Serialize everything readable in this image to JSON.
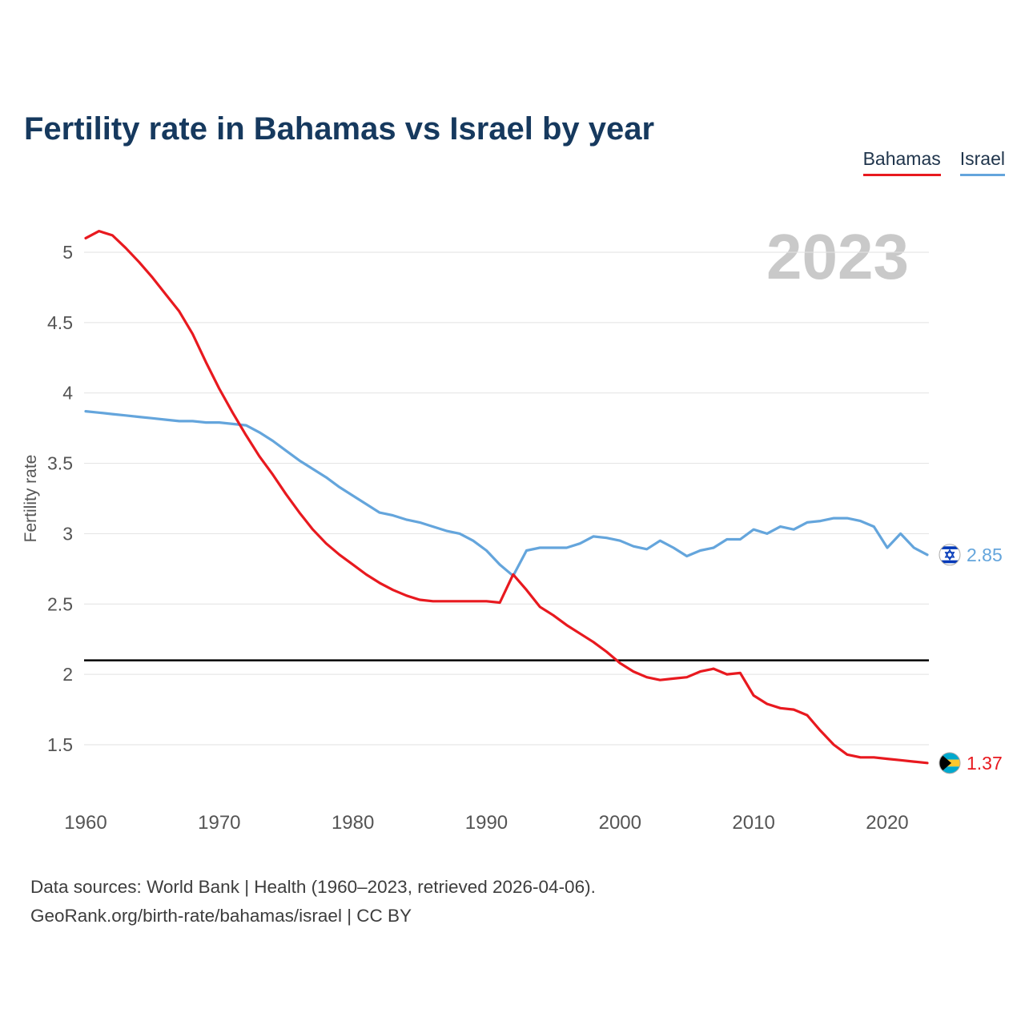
{
  "header": {
    "title": "Fertility rate in Bahamas vs Israel by year"
  },
  "legend": [
    {
      "label": "Bahamas",
      "color": "#e8191f"
    },
    {
      "label": "Israel",
      "color": "#64a5dc"
    }
  ],
  "watermark": "2023",
  "chart_data": {
    "type": "line",
    "title": "Fertility rate in Bahamas vs Israel by year",
    "xlabel": "",
    "ylabel": "Fertility rate",
    "ylim": [
      1.5,
      5
    ],
    "yticks": [
      5,
      4.5,
      4,
      3.5,
      3,
      2.5,
      2,
      1.5
    ],
    "xticks": [
      1960,
      1970,
      1980,
      1990,
      2000,
      2010,
      2020
    ],
    "grid": true,
    "legend_position": "top-right",
    "reference_line": {
      "value": 2.1,
      "color": "#000000"
    },
    "x": [
      1960,
      1961,
      1962,
      1963,
      1964,
      1965,
      1966,
      1967,
      1968,
      1969,
      1970,
      1971,
      1972,
      1973,
      1974,
      1975,
      1976,
      1977,
      1978,
      1979,
      1980,
      1981,
      1982,
      1983,
      1984,
      1985,
      1986,
      1987,
      1988,
      1989,
      1990,
      1991,
      1992,
      1993,
      1994,
      1995,
      1996,
      1997,
      1998,
      1999,
      2000,
      2001,
      2002,
      2003,
      2004,
      2005,
      2006,
      2007,
      2008,
      2009,
      2010,
      2011,
      2012,
      2013,
      2014,
      2015,
      2016,
      2017,
      2018,
      2019,
      2020,
      2021,
      2022,
      2023
    ],
    "series": [
      {
        "name": "Bahamas",
        "color": "#e8191f",
        "end_label": "1.37",
        "flag": "bahamas",
        "values": [
          5.1,
          5.15,
          5.12,
          5.03,
          4.93,
          4.82,
          4.7,
          4.58,
          4.42,
          4.22,
          4.03,
          3.86,
          3.7,
          3.55,
          3.42,
          3.28,
          3.15,
          3.03,
          2.93,
          2.85,
          2.78,
          2.71,
          2.65,
          2.6,
          2.56,
          2.53,
          2.52,
          2.52,
          2.52,
          2.52,
          2.52,
          2.51,
          2.71,
          2.6,
          2.48,
          2.42,
          2.35,
          2.29,
          2.23,
          2.16,
          2.08,
          2.02,
          1.98,
          1.96,
          1.97,
          1.98,
          2.02,
          2.04,
          2.0,
          2.01,
          1.85,
          1.79,
          1.76,
          1.75,
          1.71,
          1.6,
          1.5,
          1.43,
          1.41,
          1.41,
          1.4,
          1.39,
          1.38,
          1.37
        ]
      },
      {
        "name": "Israel",
        "color": "#64a5dc",
        "end_label": "2.85",
        "flag": "israel",
        "values": [
          3.87,
          3.86,
          3.85,
          3.84,
          3.83,
          3.82,
          3.81,
          3.8,
          3.8,
          3.79,
          3.79,
          3.78,
          3.77,
          3.72,
          3.66,
          3.59,
          3.52,
          3.46,
          3.4,
          3.33,
          3.27,
          3.21,
          3.15,
          3.13,
          3.1,
          3.08,
          3.05,
          3.02,
          3.0,
          2.95,
          2.88,
          2.78,
          2.7,
          2.88,
          2.9,
          2.9,
          2.9,
          2.93,
          2.98,
          2.97,
          2.95,
          2.91,
          2.89,
          2.95,
          2.9,
          2.84,
          2.88,
          2.9,
          2.96,
          2.96,
          3.03,
          3.0,
          3.05,
          3.03,
          3.08,
          3.09,
          3.11,
          3.11,
          3.09,
          3.05,
          2.9,
          3.0,
          2.9,
          2.85
        ]
      }
    ]
  },
  "footer": {
    "line1": "Data sources: World Bank | Health (1960–2023, retrieved 2026-04-06).",
    "line2": "GeoRank.org/birth-rate/bahamas/israel | CC BY"
  },
  "colors": {
    "title": "#16395e",
    "watermark": "#c9c9c9",
    "grid": "#e2e2e2",
    "tick": "#555555",
    "footer": "#3d3d3d",
    "israel_flag_blue": "#0038b8",
    "bahamas_aqua": "#00a9ce",
    "bahamas_gold": "#ffc72c"
  }
}
